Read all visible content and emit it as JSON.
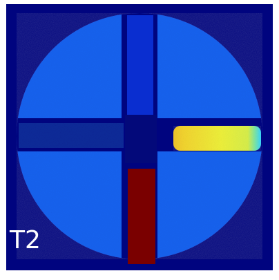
{
  "image": {
    "label": "T2",
    "colormap": "jet",
    "colors": {
      "background": "#00047f",
      "phantom_body": "#1763f0",
      "channel_dark": "#0812b0",
      "left_arm_fill": "#0f2a9a",
      "right_arm_fill": "#f2ef2e",
      "bottom_arm_fill": "#7a0000",
      "top_arm_fill": "#0a2ed0",
      "center_fill": "#03097a"
    }
  }
}
